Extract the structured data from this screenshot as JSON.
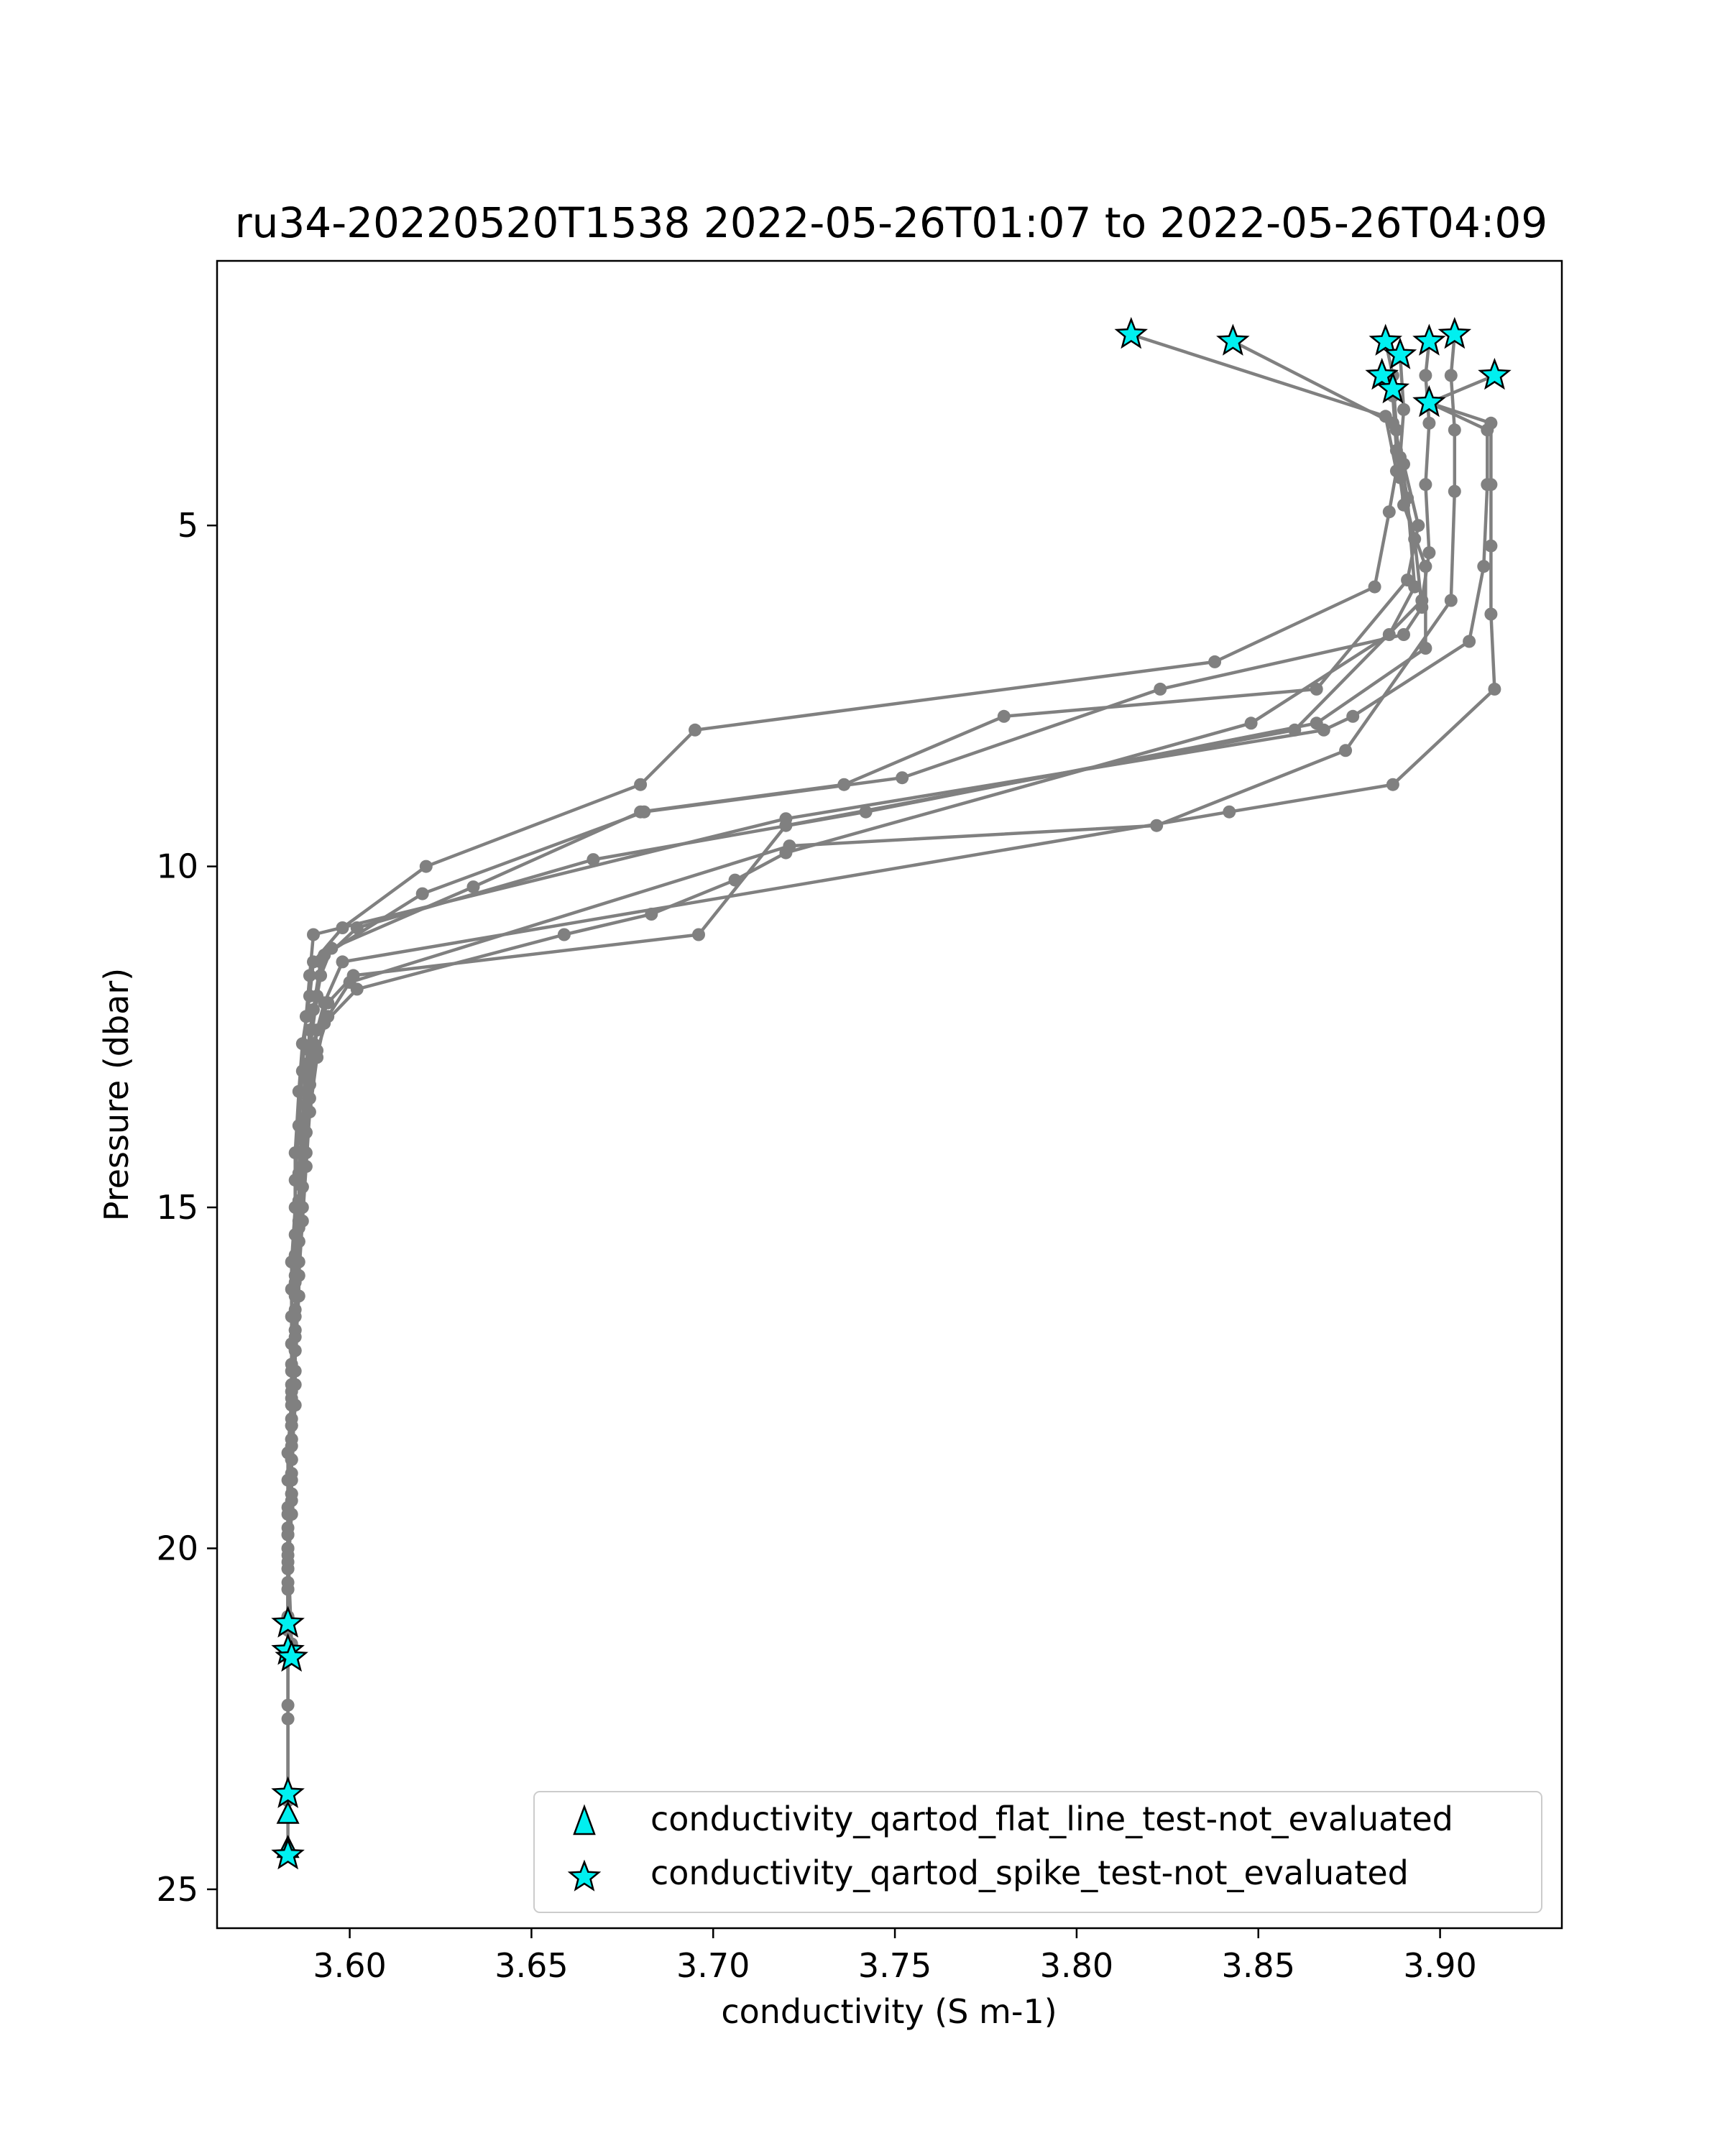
{
  "figure": {
    "title": "ru34-20220520T1538 2022-05-26T01:07 to 2022-05-26T04:09",
    "xlabel": "conductivity (S m-1)",
    "ylabel": "Pressure (dbar)"
  },
  "chart_data": {
    "type": "line",
    "title": "ru34-20220520T1538 2022-05-26T01:07 to 2022-05-26T04:09",
    "xlabel": "conductivity (S m-1)",
    "ylabel": "Pressure (dbar)",
    "xlim": [
      3.5635,
      3.9335
    ],
    "ylim": [
      25.57,
      1.12
    ],
    "y_inverted": true,
    "xticks": [
      3.6,
      3.65,
      3.7,
      3.75,
      3.8,
      3.85,
      3.9
    ],
    "xtick_labels": [
      "3.60",
      "3.65",
      "3.70",
      "3.75",
      "3.80",
      "3.85",
      "3.90"
    ],
    "yticks": [
      5,
      10,
      15,
      20,
      25
    ],
    "ytick_labels": [
      "5",
      "10",
      "15",
      "20",
      "25"
    ],
    "grid": false,
    "legend_position": "lower-right",
    "line_color": "#808080",
    "flag_color": "#00f0f0",
    "series": [
      {
        "values": [
          [
            3.815,
            2.2
          ],
          [
            3.885,
            3.4
          ],
          [
            3.888,
            4.2
          ],
          [
            3.886,
            4.8
          ],
          [
            3.882,
            5.9
          ],
          [
            3.838,
            7.0
          ],
          [
            3.695,
            8.0
          ],
          [
            3.68,
            8.8
          ],
          [
            3.621,
            10.0
          ],
          [
            3.598,
            10.9
          ],
          [
            3.59,
            11.4
          ],
          [
            3.589,
            11.9
          ],
          [
            3.587,
            12.6
          ],
          [
            3.586,
            13.3
          ],
          [
            3.585,
            14.2
          ],
          [
            3.585,
            15.0
          ],
          [
            3.584,
            15.8
          ],
          [
            3.584,
            16.6
          ],
          [
            3.584,
            17.4
          ],
          [
            3.584,
            18.2
          ],
          [
            3.583,
            19.0
          ],
          [
            3.583,
            19.8
          ],
          [
            3.583,
            20.6
          ],
          [
            3.583,
            21.2
          ]
        ]
      },
      {
        "values": [
          [
            3.843,
            2.3
          ],
          [
            3.887,
            3.5
          ],
          [
            3.89,
            4.1
          ],
          [
            3.894,
            5.0
          ],
          [
            3.891,
            5.8
          ],
          [
            3.866,
            7.4
          ],
          [
            3.78,
            7.8
          ],
          [
            3.736,
            8.8
          ],
          [
            3.68,
            9.2
          ],
          [
            3.634,
            10.3
          ],
          [
            3.595,
            11.2
          ],
          [
            3.592,
            11.6
          ],
          [
            3.589,
            12.4
          ],
          [
            3.588,
            13.1
          ],
          [
            3.587,
            14.0
          ],
          [
            3.586,
            14.9
          ],
          [
            3.585,
            15.7
          ],
          [
            3.585,
            16.5
          ],
          [
            3.584,
            17.3
          ],
          [
            3.584,
            18.1
          ],
          [
            3.584,
            18.9
          ],
          [
            3.583,
            19.7
          ],
          [
            3.583,
            20.5
          ],
          [
            3.583,
            21.5
          ]
        ]
      },
      {
        "values": [
          [
            3.885,
            2.3
          ],
          [
            3.887,
            2.8
          ],
          [
            3.888,
            3.6
          ],
          [
            3.889,
            4.3
          ],
          [
            3.893,
            5.2
          ],
          [
            3.895,
            6.2
          ],
          [
            3.89,
            6.6
          ],
          [
            3.823,
            7.4
          ],
          [
            3.752,
            8.7
          ],
          [
            3.681,
            9.2
          ],
          [
            3.62,
            10.4
          ],
          [
            3.593,
            11.3
          ],
          [
            3.591,
            11.9
          ],
          [
            3.589,
            12.7
          ],
          [
            3.588,
            13.5
          ],
          [
            3.587,
            14.4
          ],
          [
            3.586,
            15.2
          ],
          [
            3.585,
            16.0
          ],
          [
            3.585,
            16.8
          ],
          [
            3.584,
            17.6
          ],
          [
            3.584,
            18.4
          ],
          [
            3.584,
            19.2
          ],
          [
            3.583,
            20.0
          ],
          [
            3.584,
            21.4
          ]
        ]
      },
      {
        "values": [
          [
            3.884,
            2.8
          ],
          [
            3.887,
            3.1
          ],
          [
            3.888,
            3.9
          ],
          [
            3.89,
            4.7
          ],
          [
            3.896,
            5.6
          ],
          [
            3.896,
            6.8
          ],
          [
            3.866,
            7.9
          ],
          [
            3.742,
            9.2
          ],
          [
            3.667,
            9.9
          ],
          [
            3.602,
            10.9
          ],
          [
            3.592,
            11.4
          ],
          [
            3.59,
            12.1
          ],
          [
            3.588,
            12.9
          ],
          [
            3.587,
            13.7
          ],
          [
            3.586,
            14.5
          ],
          [
            3.586,
            15.3
          ],
          [
            3.585,
            16.1
          ],
          [
            3.585,
            16.9
          ],
          [
            3.584,
            17.7
          ],
          [
            3.584,
            18.5
          ],
          [
            3.584,
            19.3
          ],
          [
            3.583,
            20.1
          ],
          [
            3.583,
            21.0
          ],
          [
            3.583,
            21.6
          ]
        ]
      },
      {
        "values": [
          [
            3.889,
            2.5
          ],
          [
            3.89,
            3.3
          ],
          [
            3.889,
            4.0
          ],
          [
            3.891,
            4.6
          ],
          [
            3.893,
            5.9
          ],
          [
            3.886,
            6.6
          ],
          [
            3.848,
            7.9
          ],
          [
            3.72,
            9.8
          ],
          [
            3.706,
            10.2
          ],
          [
            3.683,
            10.7
          ],
          [
            3.659,
            11.0
          ],
          [
            3.602,
            11.8
          ],
          [
            3.593,
            12.3
          ],
          [
            3.591,
            12.8
          ],
          [
            3.589,
            13.6
          ],
          [
            3.588,
            14.4
          ],
          [
            3.587,
            15.2
          ],
          [
            3.586,
            16.0
          ],
          [
            3.585,
            16.8
          ],
          [
            3.585,
            17.6
          ],
          [
            3.584,
            18.4
          ],
          [
            3.584,
            19.2
          ],
          [
            3.583,
            20.0
          ],
          [
            3.583,
            21.1
          ]
        ]
      },
      {
        "values": [
          [
            3.897,
            2.3
          ],
          [
            3.896,
            2.8
          ],
          [
            3.897,
            3.5
          ],
          [
            3.896,
            4.4
          ],
          [
            3.897,
            5.4
          ],
          [
            3.895,
            6.1
          ],
          [
            3.86,
            8.0
          ],
          [
            3.72,
            9.4
          ],
          [
            3.696,
            11.0
          ],
          [
            3.601,
            11.6
          ],
          [
            3.594,
            12.0
          ],
          [
            3.591,
            12.4
          ],
          [
            3.59,
            12.8
          ],
          [
            3.589,
            13.4
          ],
          [
            3.588,
            14.2
          ],
          [
            3.587,
            15.0
          ],
          [
            3.586,
            15.8
          ],
          [
            3.585,
            16.6
          ],
          [
            3.585,
            17.4
          ],
          [
            3.584,
            18.2
          ],
          [
            3.584,
            19.0
          ],
          [
            3.583,
            19.8
          ],
          [
            3.583,
            20.6
          ],
          [
            3.583,
            21.2
          ]
        ]
      },
      {
        "values": [
          [
            3.904,
            2.2
          ],
          [
            3.903,
            2.8
          ],
          [
            3.904,
            3.6
          ],
          [
            3.904,
            4.5
          ],
          [
            3.903,
            6.1
          ],
          [
            3.874,
            8.3
          ],
          [
            3.822,
            9.4
          ],
          [
            3.721,
            9.7
          ],
          [
            3.6,
            11.7
          ],
          [
            3.594,
            12.2
          ],
          [
            3.591,
            12.7
          ],
          [
            3.589,
            13.2
          ],
          [
            3.588,
            13.9
          ],
          [
            3.587,
            14.7
          ],
          [
            3.586,
            15.5
          ],
          [
            3.586,
            16.3
          ],
          [
            3.585,
            17.1
          ],
          [
            3.585,
            17.9
          ],
          [
            3.584,
            18.7
          ],
          [
            3.584,
            19.5
          ],
          [
            3.583,
            20.3
          ],
          [
            3.583,
            21.6
          ]
        ]
      },
      {
        "values": [
          [
            3.915,
            2.8
          ],
          [
            3.897,
            3.2
          ],
          [
            3.913,
            3.6
          ],
          [
            3.913,
            4.4
          ],
          [
            3.912,
            5.6
          ],
          [
            3.908,
            6.7
          ],
          [
            3.876,
            7.8
          ],
          [
            3.868,
            8.0
          ],
          [
            3.72,
            9.3
          ],
          [
            3.59,
            11.0
          ],
          [
            3.589,
            11.6
          ],
          [
            3.588,
            12.2
          ],
          [
            3.587,
            13.0
          ],
          [
            3.586,
            13.8
          ],
          [
            3.585,
            14.6
          ],
          [
            3.585,
            15.4
          ],
          [
            3.584,
            16.2
          ],
          [
            3.584,
            17.0
          ],
          [
            3.584,
            17.8
          ],
          [
            3.583,
            18.6
          ],
          [
            3.583,
            19.4
          ],
          [
            3.583,
            20.2
          ],
          [
            3.583,
            21.0
          ],
          [
            3.583,
            21.6
          ],
          [
            3.583,
            22.5
          ],
          [
            3.583,
            23.6
          ]
        ]
      },
      {
        "values": [
          [
            3.897,
            3.2
          ],
          [
            3.914,
            3.5
          ],
          [
            3.914,
            4.4
          ],
          [
            3.914,
            5.3
          ],
          [
            3.914,
            6.3
          ],
          [
            3.915,
            7.4
          ],
          [
            3.887,
            8.8
          ],
          [
            3.842,
            9.2
          ],
          [
            3.598,
            11.4
          ],
          [
            3.593,
            12.0
          ],
          [
            3.59,
            12.6
          ],
          [
            3.589,
            13.2
          ],
          [
            3.588,
            13.9
          ],
          [
            3.587,
            14.7
          ],
          [
            3.586,
            15.5
          ],
          [
            3.585,
            16.3
          ],
          [
            3.585,
            17.1
          ],
          [
            3.584,
            17.9
          ],
          [
            3.584,
            18.7
          ],
          [
            3.583,
            19.5
          ],
          [
            3.583,
            20.3
          ],
          [
            3.583,
            21.5
          ],
          [
            3.583,
            22.3
          ],
          [
            3.583,
            23.7
          ],
          [
            3.583,
            24.5
          ]
        ]
      }
    ],
    "flags": [
      {
        "name": "conductivity_qartod_flat_line_test-not_evaluated",
        "marker": "triangle",
        "points": [
          [
            3.583,
            23.9
          ],
          [
            3.583,
            24.4
          ]
        ]
      },
      {
        "name": "conductivity_qartod_spike_test-not_evaluated",
        "marker": "star",
        "points": [
          [
            3.815,
            2.2
          ],
          [
            3.843,
            2.3
          ],
          [
            3.885,
            2.3
          ],
          [
            3.889,
            2.5
          ],
          [
            3.884,
            2.8
          ],
          [
            3.887,
            3.0
          ],
          [
            3.897,
            2.3
          ],
          [
            3.904,
            2.2
          ],
          [
            3.915,
            2.8
          ],
          [
            3.897,
            3.2
          ],
          [
            3.583,
            21.1
          ],
          [
            3.583,
            21.5
          ],
          [
            3.584,
            21.6
          ],
          [
            3.583,
            23.6
          ],
          [
            3.583,
            24.5
          ]
        ]
      }
    ]
  }
}
